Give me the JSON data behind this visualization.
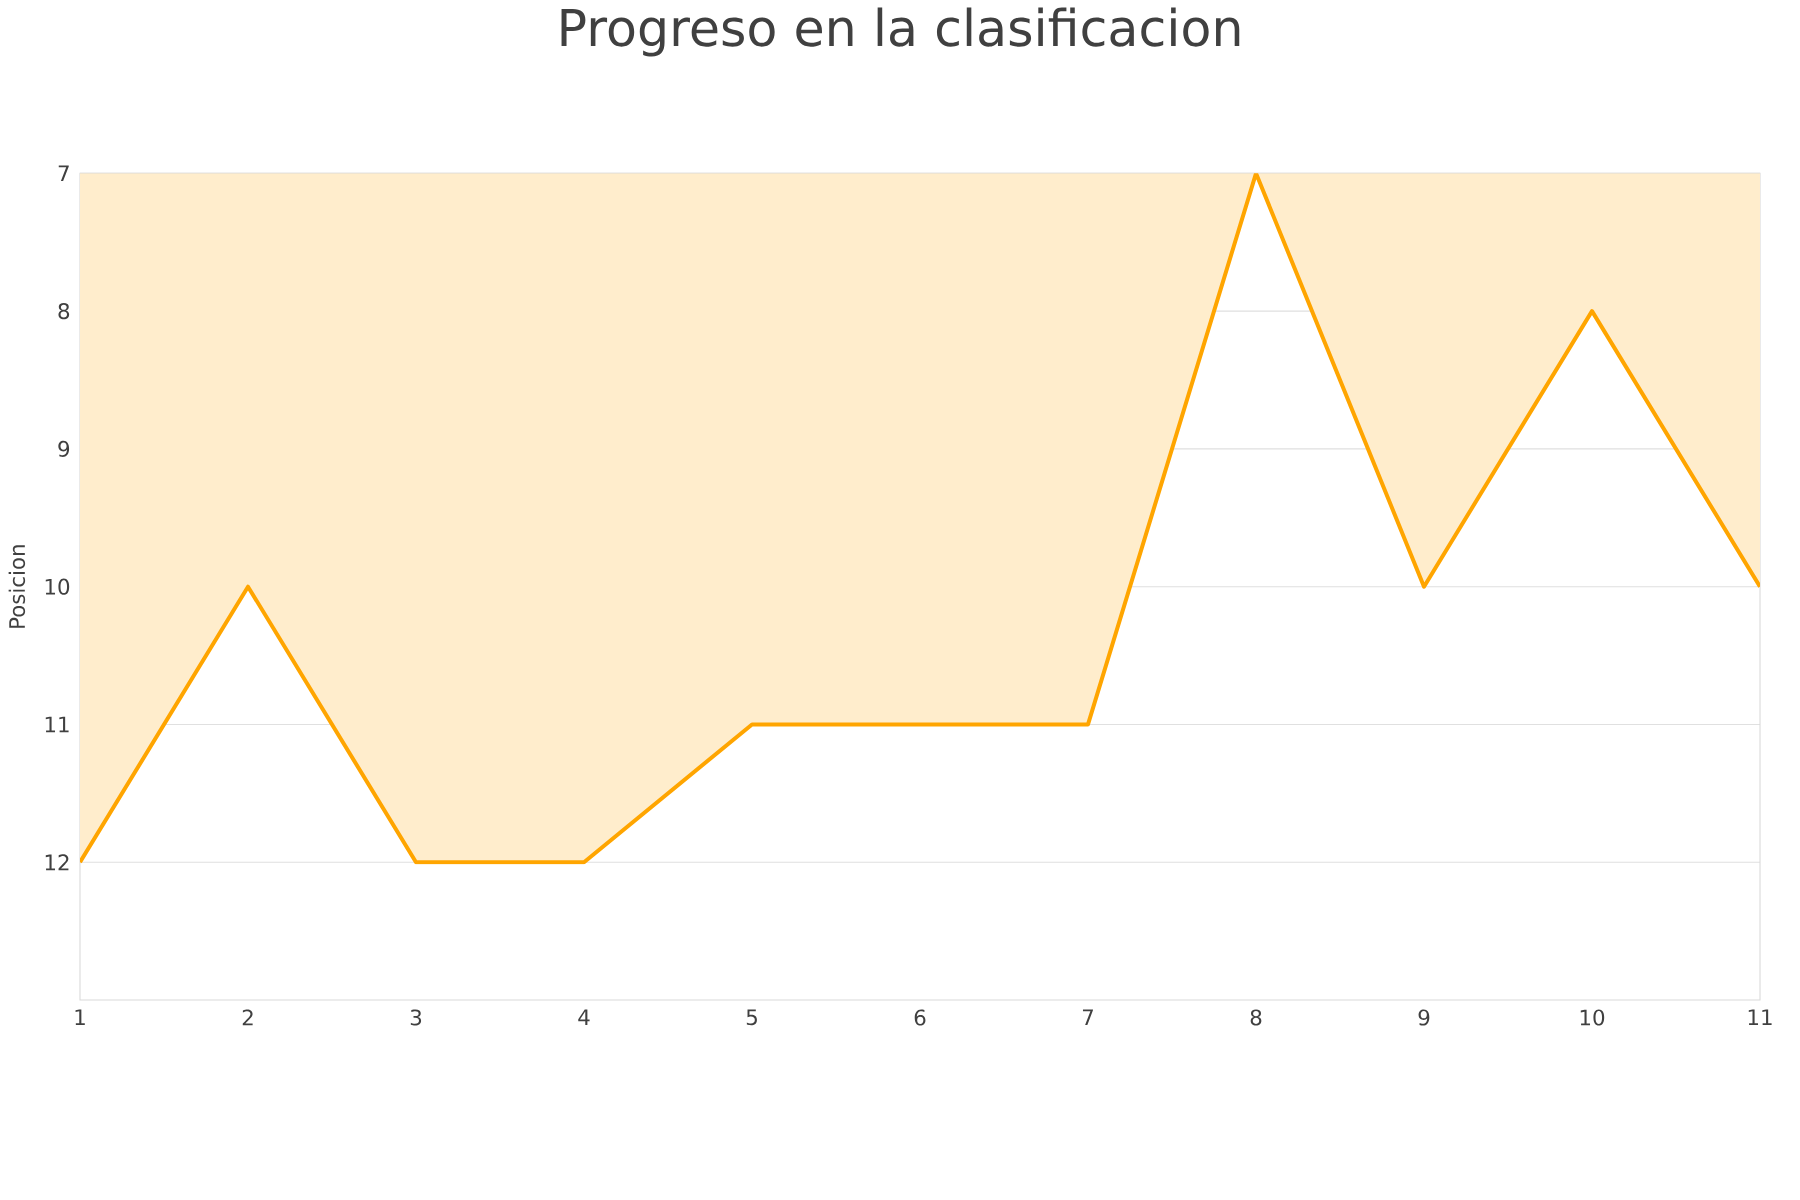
{
  "chart_data": {
    "type": "area",
    "title": "Progreso en la clasificacion",
    "ylabel": "Posicion",
    "x": [
      1,
      2,
      3,
      4,
      5,
      6,
      7,
      8,
      9,
      10,
      11
    ],
    "series": [
      {
        "color": "#ffa500",
        "values": [
          12,
          10,
          12,
          12,
          11,
          11,
          11,
          7,
          10,
          8,
          10
        ]
      }
    ],
    "xlim": [
      1,
      11
    ],
    "xticks": [
      1,
      2,
      3,
      4,
      5,
      6,
      7,
      8,
      9,
      10,
      11
    ],
    "ylim": [
      13,
      7
    ],
    "yticks": [
      7,
      8,
      9,
      10,
      11,
      12
    ],
    "grid": "y"
  }
}
